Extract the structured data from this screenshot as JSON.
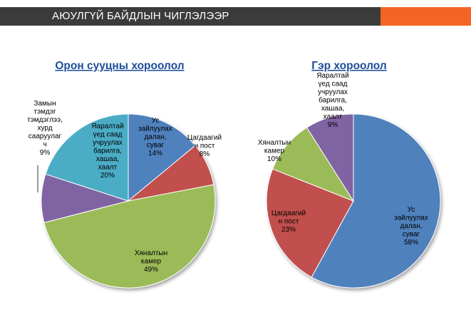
{
  "header": {
    "title": "АЮУЛГҮЙ БАЙДЛЫН ЧИГЛЭЛЭЭР",
    "bar_color": "#3b3b3b",
    "accent_color": "#f26522"
  },
  "chart_data": [
    {
      "type": "pie",
      "title": "Орон сууцны хороолол",
      "slices": [
        {
          "lines": [
            "Ус",
            "зайлуулах",
            "далан,",
            "суваг",
            "14%"
          ],
          "value": 14,
          "color": "#4f81bd"
        },
        {
          "lines": [
            "Цагдаагий",
            "н пост",
            "8%"
          ],
          "value": 8,
          "color": "#c0504d"
        },
        {
          "lines": [
            "Хяналтын",
            "камер",
            "49%"
          ],
          "value": 49,
          "color": "#9bbb59"
        },
        {
          "lines": [
            "Замын",
            "тэмдэг",
            "тэмдэглээ,",
            "хурд",
            "сааруулаг",
            "ч",
            "9%"
          ],
          "value": 9,
          "color": "#8064a2"
        },
        {
          "lines": [
            "Яаралтай",
            "үед саад",
            "учруулах",
            "барилга,",
            "хашаа,",
            "хаалт",
            "20%"
          ],
          "value": 20,
          "color": "#4bacc6"
        }
      ]
    },
    {
      "type": "pie",
      "title": "Гэр хороолол",
      "slices": [
        {
          "lines": [
            "Ус",
            "зайлуулах",
            "далан,",
            "суваг",
            "58%"
          ],
          "value": 58,
          "color": "#4f81bd"
        },
        {
          "lines": [
            "Цагдаагий",
            "н пост",
            "23%"
          ],
          "value": 23,
          "color": "#c0504d"
        },
        {
          "lines": [
            "Хяналтын",
            "камер",
            "10%"
          ],
          "value": 10,
          "color": "#9bbb59"
        },
        {
          "lines": [
            "Яаралтай",
            "үед саад",
            "учруулах",
            "барилга,",
            "хашаа,",
            "хаалт",
            "9%"
          ],
          "value": 9,
          "color": "#8064a2"
        }
      ]
    }
  ]
}
